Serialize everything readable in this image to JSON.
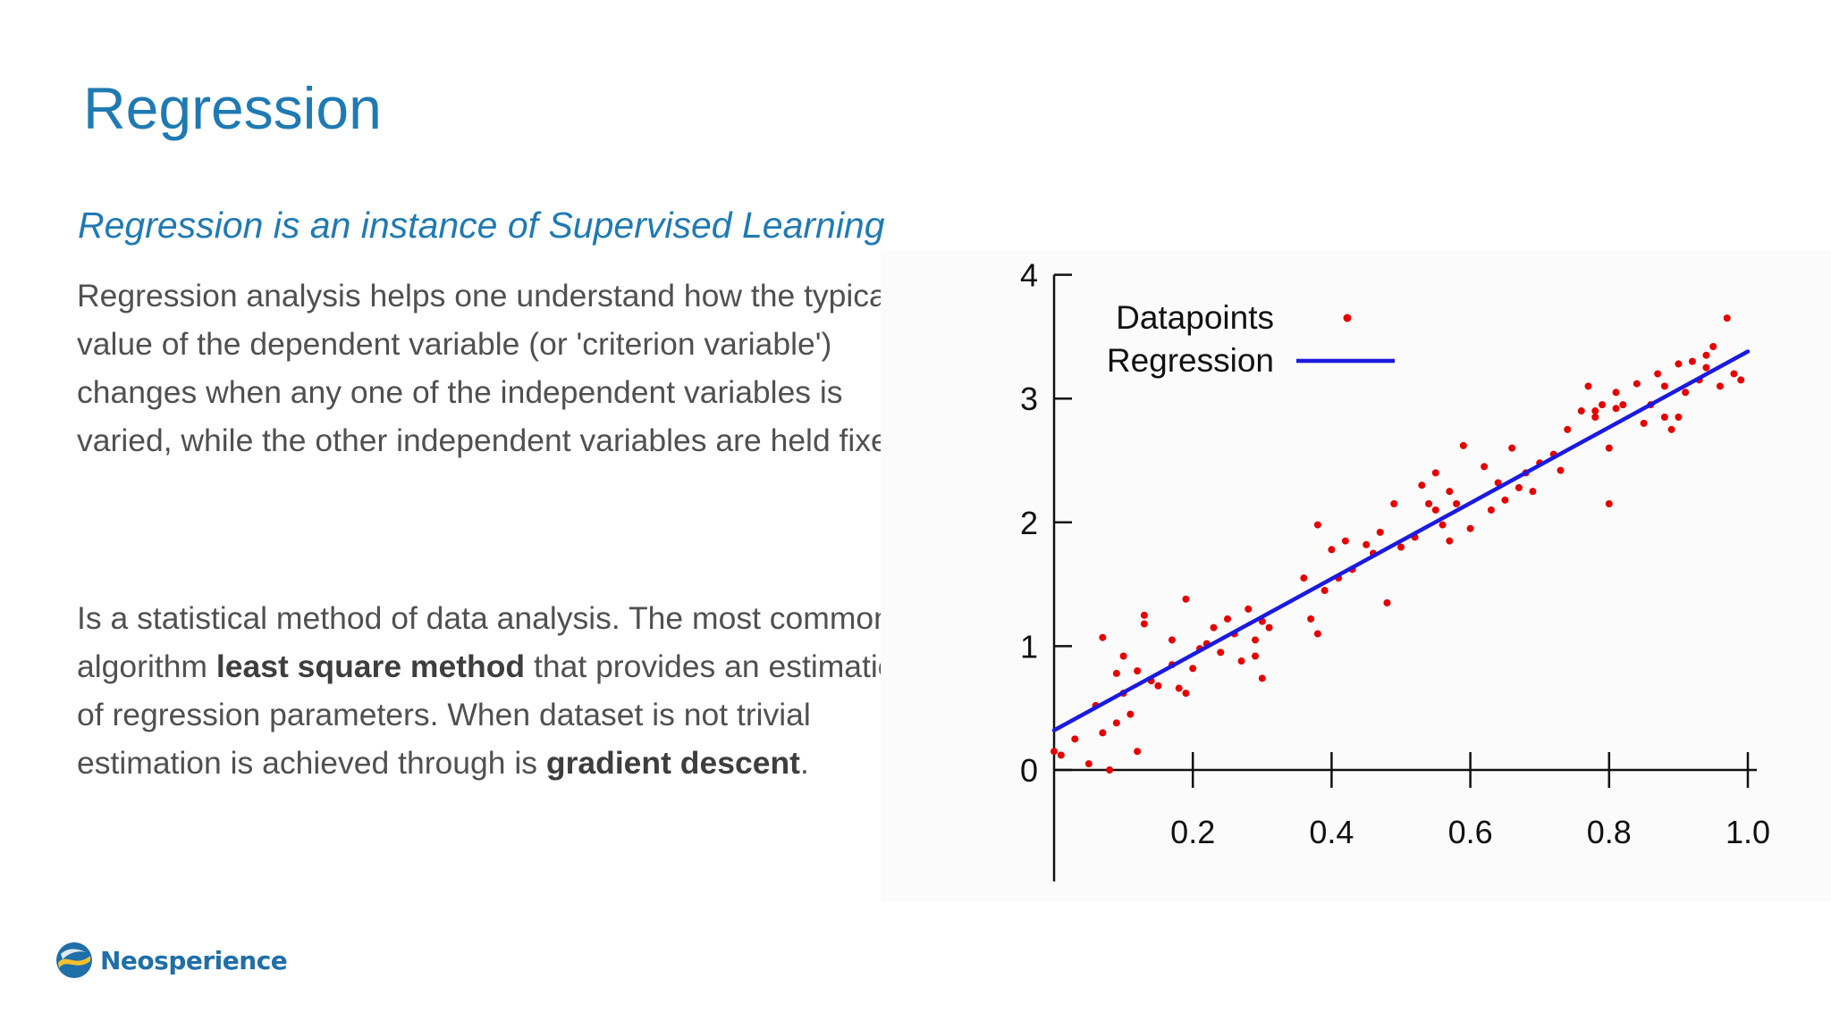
{
  "slide": {
    "title": "Regression",
    "subtitle": "Regression is an instance of Supervised Learning",
    "paragraph1": "Regression analysis helps one understand how the typical value of the dependent variable (or 'criterion variable') changes when any one of the independent variables is varied, while the other independent variables are held fixed.",
    "paragraph2": {
      "part1": "Is a statistical method of data analysis. The most common algorithm ",
      "bold1": "least square method",
      "part2": " that provides an estimation of regression parameters. When dataset is not trivial estimation is achieved through is ",
      "bold2": "gradient descent",
      "part3": "."
    }
  },
  "logo": {
    "text": "Neosperience"
  },
  "colors": {
    "title": "#1f7ab3",
    "text": "#505050",
    "points": "#e60000",
    "regression_line": "#1a1ae0"
  },
  "chart_data": {
    "type": "scatter",
    "title": "",
    "xlabel": "",
    "ylabel": "",
    "xlim": [
      0,
      1.0
    ],
    "ylim": [
      -0.9,
      4
    ],
    "x_ticks": [
      "0.2",
      "0.4",
      "0.6",
      "0.8",
      "1.0"
    ],
    "y_ticks": [
      "0",
      "1",
      "2",
      "3",
      "4"
    ],
    "legend_position": "top-left",
    "legend": [
      {
        "label": "Datapoints",
        "kind": "point"
      },
      {
        "label": "Regression",
        "kind": "line"
      }
    ],
    "regression_line": {
      "x": [
        0,
        1.0
      ],
      "y": [
        0.32,
        3.38
      ]
    },
    "series": [
      {
        "label": "Datapoints",
        "x": [
          0.0,
          0.01,
          0.03,
          0.05,
          0.06,
          0.07,
          0.07,
          0.08,
          0.09,
          0.09,
          0.1,
          0.1,
          0.11,
          0.12,
          0.12,
          0.13,
          0.13,
          0.14,
          0.15,
          0.17,
          0.17,
          0.18,
          0.19,
          0.19,
          0.2,
          0.21,
          0.22,
          0.23,
          0.24,
          0.25,
          0.26,
          0.27,
          0.28,
          0.29,
          0.29,
          0.3,
          0.3,
          0.31,
          0.36,
          0.37,
          0.38,
          0.38,
          0.39,
          0.4,
          0.41,
          0.42,
          0.43,
          0.45,
          0.46,
          0.47,
          0.48,
          0.49,
          0.5,
          0.52,
          0.53,
          0.54,
          0.55,
          0.55,
          0.56,
          0.57,
          0.57,
          0.58,
          0.59,
          0.6,
          0.62,
          0.63,
          0.64,
          0.65,
          0.66,
          0.67,
          0.68,
          0.69,
          0.7,
          0.72,
          0.73,
          0.74,
          0.76,
          0.77,
          0.78,
          0.78,
          0.79,
          0.8,
          0.8,
          0.81,
          0.81,
          0.82,
          0.84,
          0.85,
          0.86,
          0.87,
          0.88,
          0.88,
          0.89,
          0.9,
          0.9,
          0.91,
          0.92,
          0.93,
          0.94,
          0.94,
          0.95,
          0.96,
          0.97,
          0.98,
          0.99
        ],
        "y": [
          0.15,
          0.12,
          0.25,
          0.05,
          0.52,
          0.3,
          1.07,
          0.0,
          0.78,
          0.38,
          0.62,
          0.92,
          0.45,
          0.15,
          0.8,
          1.25,
          1.18,
          0.72,
          0.68,
          1.05,
          0.85,
          0.66,
          0.62,
          1.38,
          0.82,
          0.98,
          1.02,
          1.15,
          0.95,
          1.22,
          1.1,
          0.88,
          1.3,
          1.05,
          0.92,
          1.2,
          0.74,
          1.15,
          1.55,
          1.22,
          1.98,
          1.1,
          1.45,
          1.78,
          1.55,
          1.85,
          1.62,
          1.82,
          1.75,
          1.92,
          1.35,
          2.15,
          1.8,
          1.88,
          2.3,
          2.15,
          2.1,
          2.4,
          1.98,
          2.25,
          1.85,
          2.15,
          2.62,
          1.95,
          2.45,
          2.1,
          2.32,
          2.18,
          2.6,
          2.28,
          2.4,
          2.25,
          2.48,
          2.55,
          2.42,
          2.75,
          2.9,
          3.1,
          2.85,
          2.9,
          2.95,
          2.6,
          2.15,
          2.92,
          3.05,
          2.95,
          3.12,
          2.8,
          2.95,
          3.2,
          2.85,
          3.1,
          2.75,
          3.28,
          2.85,
          3.05,
          3.3,
          3.15,
          3.25,
          3.35,
          3.42,
          3.1,
          3.65,
          3.2,
          3.15
        ]
      }
    ]
  }
}
